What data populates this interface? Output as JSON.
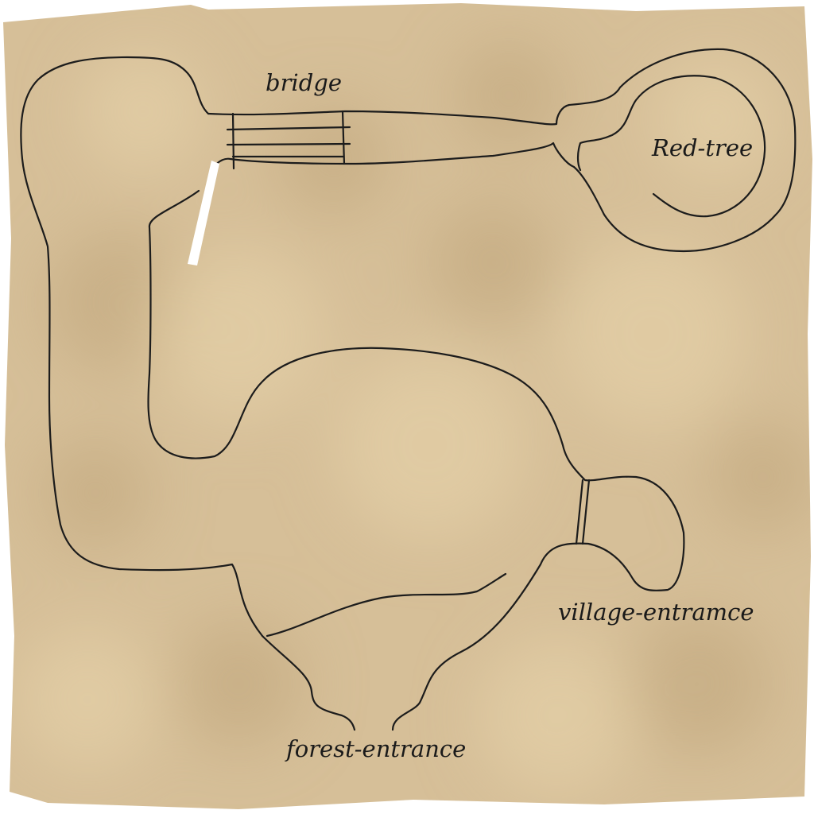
{
  "map": {
    "labels": {
      "bridge": "bridge",
      "red_tree": "Red-tree",
      "village_entrance": "village-entramce",
      "forest_entrance": "forest-entrance"
    },
    "colors": {
      "parchment": "#d6bf98",
      "parchment_light": "#e2cda5",
      "parchment_dark": "#c6ad84",
      "ink": "#1c1c1c",
      "mark": "#ffffff"
    }
  }
}
